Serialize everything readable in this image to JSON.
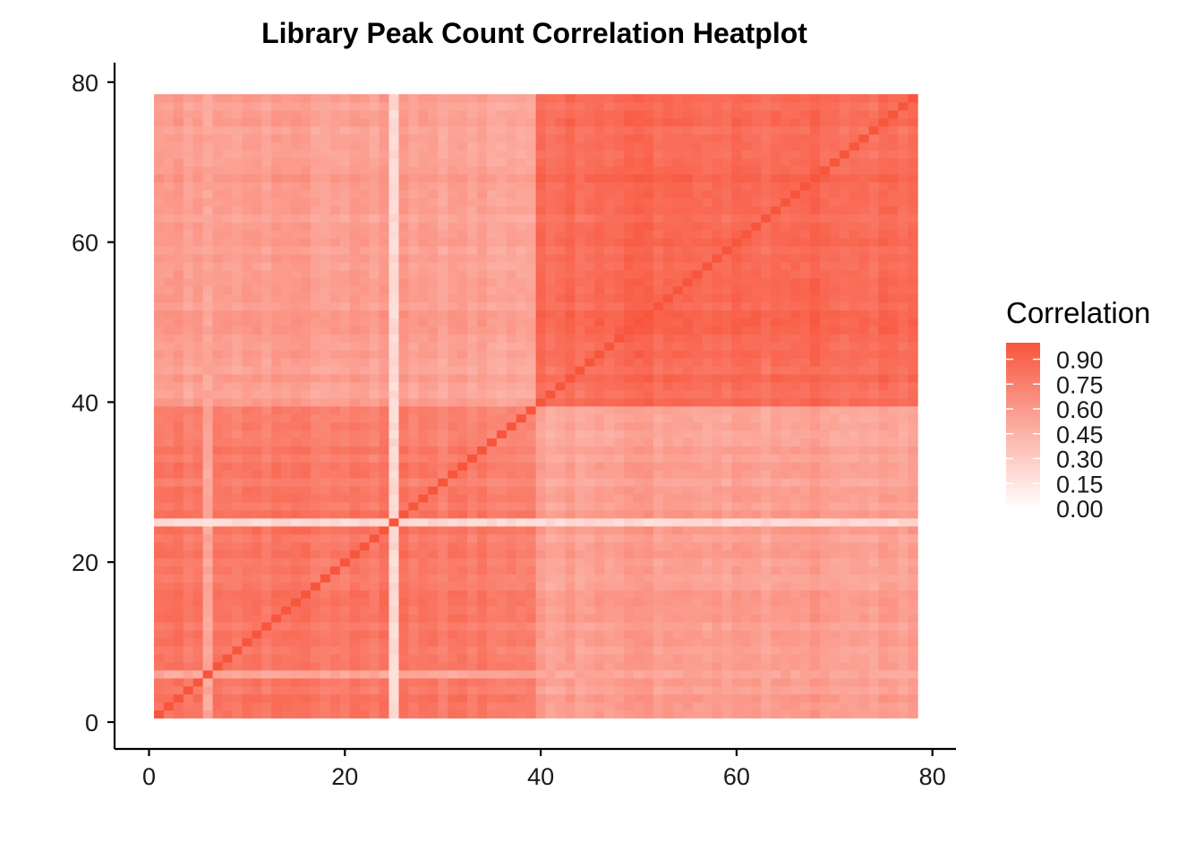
{
  "chart_data": {
    "type": "heatmap",
    "title": "Library Peak Count Correlation Heatplot",
    "xlabel": "",
    "ylabel": "",
    "n": 78,
    "group_split": 39,
    "xlim": [
      0,
      80
    ],
    "ylim": [
      0,
      80
    ],
    "x_ticks": [
      0,
      20,
      40,
      60,
      80
    ],
    "y_ticks": [
      0,
      20,
      40,
      60,
      80
    ],
    "blocks": {
      "diagonal": 1.0,
      "group_a_within": 0.78,
      "group_b_within": 0.87,
      "between_groups": 0.56
    },
    "low_correlation_libraries": [
      {
        "index": 25,
        "value": 0.22
      },
      {
        "index": 6,
        "value": 0.52
      }
    ],
    "color_scale": {
      "low": "#ffffff",
      "high": "#f8553d",
      "limits": [
        0,
        1
      ]
    },
    "legend": {
      "title": "Correlation",
      "position": "right",
      "labels": [
        "0.90",
        "0.75",
        "0.60",
        "0.45",
        "0.30",
        "0.15",
        "0.00"
      ],
      "values": [
        0.9,
        0.75,
        0.6,
        0.45,
        0.3,
        0.15,
        0.0
      ]
    },
    "grid": false
  }
}
